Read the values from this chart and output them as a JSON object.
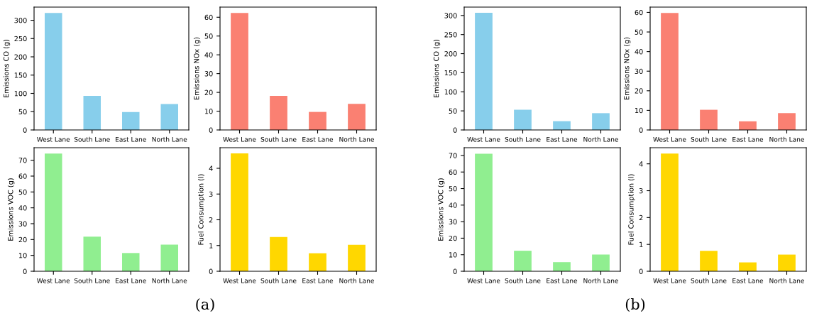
{
  "chart_data": [
    {
      "type": "bar",
      "categories": [
        "West Lane",
        "South Lane",
        "East Lane",
        "North Lane"
      ],
      "values": [
        320,
        93,
        49,
        71
      ],
      "color": "#87ceeb",
      "ylabel": "Emissions CO (g)",
      "ylim": [
        0,
        336
      ],
      "yticks": [
        0,
        50,
        100,
        150,
        200,
        250,
        300
      ]
    },
    {
      "type": "bar",
      "categories": [
        "West Lane",
        "South Lane",
        "East Lane",
        "North Lane"
      ],
      "values": [
        62.3,
        18.1,
        9.6,
        13.9
      ],
      "color": "#fa8072",
      "ylabel": "Emissions NOx (g)",
      "ylim": [
        0,
        65.4
      ],
      "yticks": [
        0,
        10,
        20,
        30,
        40,
        50,
        60
      ]
    },
    {
      "type": "bar",
      "categories": [
        "West Lane",
        "South Lane",
        "East Lane",
        "North Lane"
      ],
      "values": [
        74.2,
        21.8,
        11.5,
        16.8
      ],
      "color": "#90ee90",
      "ylabel": "Emissions VOC (g)",
      "ylim": [
        0,
        77.9
      ],
      "yticks": [
        0,
        10,
        20,
        30,
        40,
        50,
        60,
        70
      ]
    },
    {
      "type": "bar",
      "categories": [
        "West Lane",
        "South Lane",
        "East Lane",
        "North Lane"
      ],
      "values": [
        4.58,
        1.33,
        0.7,
        1.03
      ],
      "color": "#ffd700",
      "ylabel": "Fuel Consumption (l)",
      "ylim": [
        0,
        4.8
      ],
      "yticks": [
        0,
        1,
        2,
        3,
        4
      ],
      "annotations": [
        "(a)"
      ]
    },
    {
      "type": "bar",
      "categories": [
        "West Lane",
        "South Lane",
        "East Lane",
        "North Lane"
      ],
      "values": [
        307,
        53,
        23,
        44
      ],
      "color": "#87ceeb",
      "ylabel": "Emissions CO (g)",
      "ylim": [
        0,
        322
      ],
      "yticks": [
        0,
        50,
        100,
        150,
        200,
        250,
        300
      ]
    },
    {
      "type": "bar",
      "categories": [
        "West Lane",
        "South Lane",
        "East Lane",
        "North Lane"
      ],
      "values": [
        59.7,
        10.3,
        4.4,
        8.6
      ],
      "color": "#fa8072",
      "ylabel": "Emissions NOx (g)",
      "ylim": [
        0,
        62.7
      ],
      "yticks": [
        0,
        10,
        20,
        30,
        40,
        50,
        60
      ]
    },
    {
      "type": "bar",
      "categories": [
        "West Lane",
        "South Lane",
        "East Lane",
        "North Lane"
      ],
      "values": [
        71.1,
        12.4,
        5.5,
        10.1
      ],
      "color": "#90ee90",
      "ylabel": "Emissions VOC (g)",
      "ylim": [
        0,
        74.7
      ],
      "yticks": [
        0,
        10,
        20,
        30,
        40,
        50,
        60,
        70
      ]
    },
    {
      "type": "bar",
      "categories": [
        "West Lane",
        "South Lane",
        "East Lane",
        "North Lane"
      ],
      "values": [
        4.38,
        0.76,
        0.33,
        0.62
      ],
      "color": "#ffd700",
      "ylabel": "Fuel Consumption (l)",
      "ylim": [
        0,
        4.6
      ],
      "yticks": [
        0,
        1,
        2,
        3,
        4
      ],
      "annotations": [
        "(b)"
      ]
    }
  ]
}
